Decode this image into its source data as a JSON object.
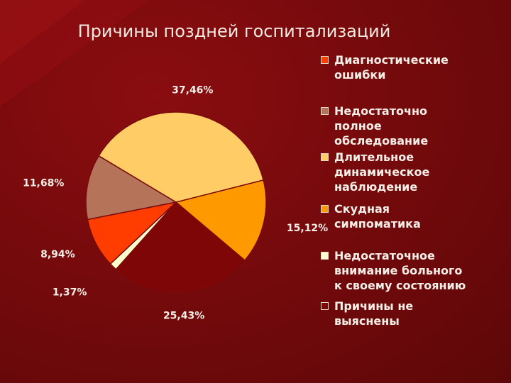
{
  "title": "Причины поздней госпитализаций",
  "chart_data": {
    "type": "pie",
    "title": "Причины поздней госпитализаций",
    "legend_position": "right",
    "slices": [
      {
        "label": "Скудная симпоматика",
        "value": 15.12,
        "value_label": "15,12%",
        "color": "#ff9900"
      },
      {
        "label": "Причины не выяснены",
        "value": 25.43,
        "value_label": "25,43%",
        "color": "#7f0606"
      },
      {
        "label": "Недостаточное внимание больного к своему состоянию",
        "value": 1.37,
        "value_label": "1,37%",
        "color": "#ffffcc"
      },
      {
        "label": "Диагностические ошибки",
        "value": 8.94,
        "value_label": "8,94%",
        "color": "#ff3d00"
      },
      {
        "label": "Недостаточно полное обследование",
        "value": 11.68,
        "value_label": "11,68%",
        "color": "#b5735a"
      },
      {
        "label": "Длительное динамическое наблюдение",
        "value": 37.46,
        "value_label": "37,46%",
        "color": "#ffcc66"
      }
    ]
  },
  "legend": [
    {
      "label": "Диагностические\nошибки",
      "color": "#ff3d00"
    },
    {
      "label": "Недостаточно\nполное\nобследование",
      "color": "#b5735a"
    },
    {
      "label": "Длительное\nдинамическое\nнаблюдение",
      "color": "#ffcc66"
    },
    {
      "label": "Скудная\nсимпоматика",
      "color": "#ff9900"
    },
    {
      "label": "Недостаточное\nвнимание больного\nк своему состоянию",
      "color": "#ffffcc"
    },
    {
      "label": "Причины не\nвыяснены",
      "color": "#7f0606"
    }
  ]
}
